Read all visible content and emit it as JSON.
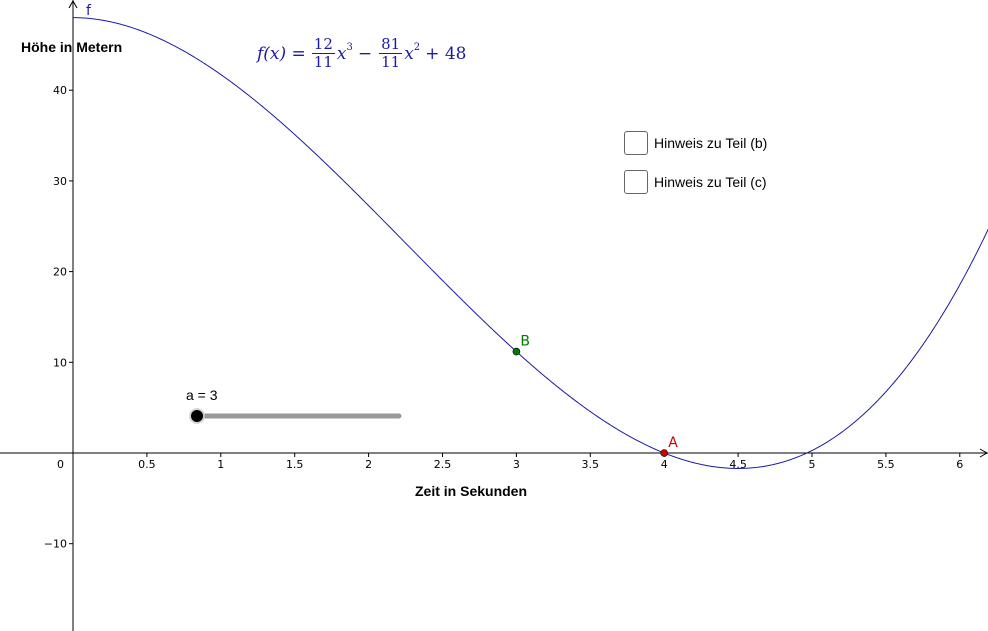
{
  "graph": {
    "function_name": "f",
    "y_axis_title": "Höhe in Metern",
    "x_axis_title": "Zeit in Sekunden",
    "curve_color": "#1a1aa6",
    "x_ticks": [
      "0",
      "0.5",
      "1",
      "1.5",
      "2",
      "2.5",
      "3",
      "3.5",
      "4",
      "4.5",
      "5",
      "5.5",
      "6"
    ],
    "y_ticks": [
      "40",
      "30",
      "20",
      "10",
      "−10"
    ]
  },
  "formula": {
    "lhs": "f(x) =",
    "a_num": "12",
    "a_den": "11",
    "term1": "x",
    "exp1": "3",
    "minus": "−",
    "b_num": "81",
    "b_den": "11",
    "term2": "x",
    "exp2": "2",
    "plus_const": "+ 48"
  },
  "points": {
    "A": {
      "label": "A",
      "x": 4,
      "color": "#cc0000"
    },
    "B": {
      "label": "B",
      "x": 3,
      "color": "#007a00"
    }
  },
  "checkboxes": [
    {
      "label": "Hinweis zu Teil (b)",
      "checked": false
    },
    {
      "label": "Hinweis zu Teil (c)",
      "checked": false
    }
  ],
  "slider": {
    "caption": "a = 3",
    "value": 3
  }
}
